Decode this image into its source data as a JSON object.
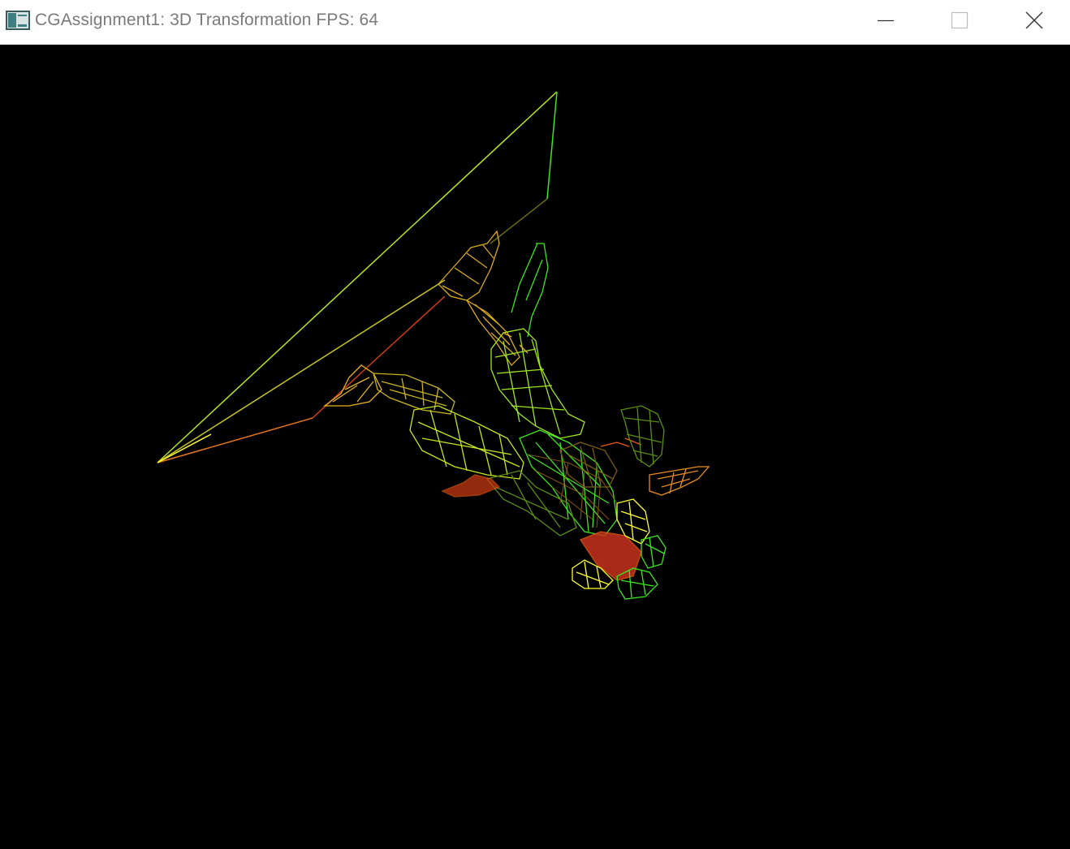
{
  "window": {
    "title": "CGAssignment1: 3D Transformation FPS: 64",
    "icon": "application-window-icon",
    "controls": {
      "minimize_icon": "minimize-icon",
      "maximize_icon": "maximize-icon",
      "close_icon": "close-icon"
    }
  },
  "viewport": {
    "background": "#000000",
    "render_mode": "wireframe",
    "palette": [
      "#ffff33",
      "#c8e61e",
      "#3ce61e",
      "#e6b41e",
      "#e65a14",
      "#d23c14",
      "#ff961e",
      "#5a8c14",
      "#7a5a14"
    ]
  }
}
